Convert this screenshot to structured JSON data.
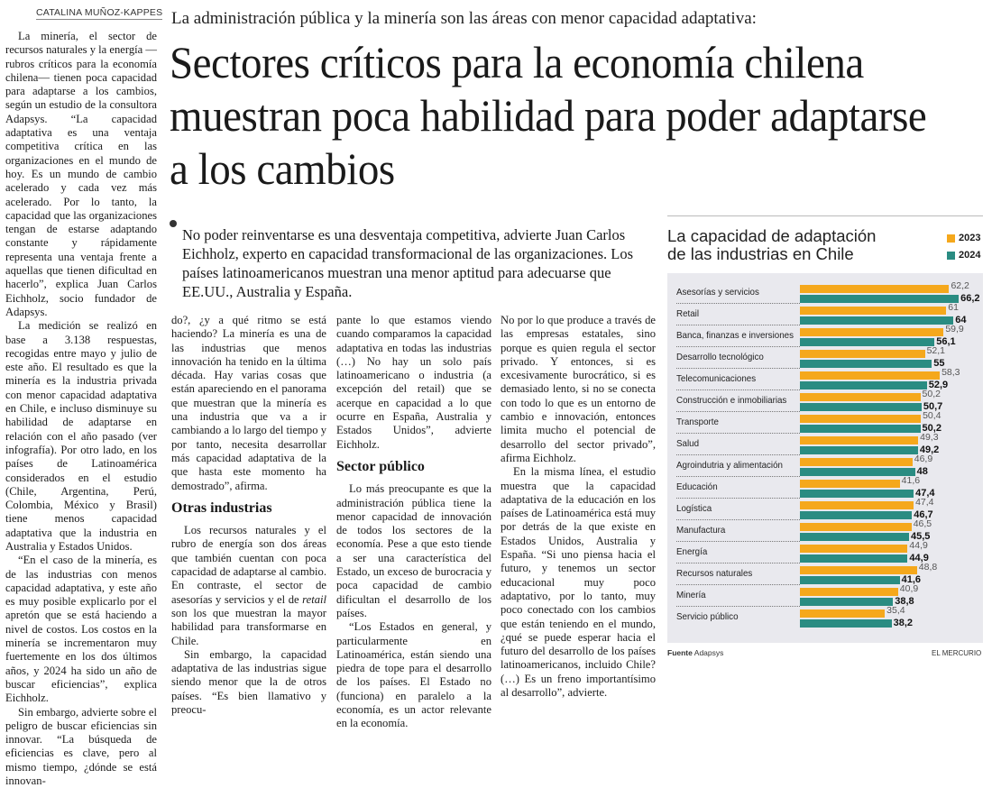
{
  "byline": "CATALINA MUÑOZ-KAPPES",
  "kicker": "La administración pública y la minería son las áreas con menor capacidad adaptativa:",
  "headline": "Sectores críticos para la economía chilena muestran poca habilidad para poder adaptarse a los cambios",
  "deck": "No poder reinventarse es una desventaja competitiva, advierte Juan Carlos Eichholz, experto en capacidad transformacional de las organizaciones. Los países latinoamericanos muestran una menor aptitud para adecuarse que EE.UU., Australia y España.",
  "col1": [
    "La minería, el sector de recursos naturales y la energía —rubros críticos para la economía chilena— tienen poca capacidad para adaptarse a los cambios, según un estudio de la consultora Adapsys. “La capacidad adaptativa es una ventaja competitiva crítica en las organizaciones en el mundo de hoy. Es un mundo de cambio acelerado y cada vez más acelerado. Por lo tanto, la capacidad que las organizaciones tengan de estarse adaptando constante y rápidamente representa una ventaja frente a aquellas que tienen dificultad en hacerlo”, explica Juan Carlos Eichholz, socio fundador de Adapsys.",
    "La medición se realizó en base a 3.138 respuestas, recogidas entre mayo y julio de este año. El resultado es que la minería es la industria privada con menor capacidad adaptativa en Chile, e incluso disminuye su habilidad de adaptarse en relación con el año pasado (ver infografía). Por otro lado, en los países de Latinoamérica considerados en el estudio (Chile, Argentina, Perú, Colombia, México y Brasil) tiene menos capacidad adaptativa que la industria en Australia y Estados Unidos.",
    "“En el caso de la minería, es de las industrias con menos capacidad adaptativa, y este año es muy posible explicarlo por el apretón que se está haciendo a nivel de costos. Los costos en la minería se incrementaron muy fuertemente en los dos últimos años, y 2024 ha sido un año de buscar eficiencias”, explica Eichholz.",
    "Sin embargo, advierte sobre el peligro de buscar eficiencias sin innovar. “La búsqueda de eficiencias es clave, pero al mismo tiempo, ¿dónde se está innovan-"
  ],
  "col2": {
    "p1": "do?, ¿y a qué ritmo se está haciendo? La minería es una de las industrias que menos innovación ha tenido en la última década. Hay varias cosas que están apareciendo en el panorama que muestran que la minería es una industria que va a ir cambiando a lo largo del tiempo y por tanto, necesita desarrollar más capacidad adaptativa de la que hasta este momento ha demostrado”, afirma.",
    "heading": "Otras industrias",
    "p2a": "Los recursos naturales y el rubro de energía son dos áreas que también cuentan con poca capacidad de adaptarse al cambio. En contraste, el sector de asesorías y servicios y el de ",
    "p2em": "retail",
    "p2b": " son los que muestran la mayor habilidad para transformarse en Chile.",
    "p3": "Sin embargo, la capacidad adaptativa de las industrias sigue siendo menor que la de otros países. “Es bien llamativo y preocu-"
  },
  "col3": {
    "p1": "pante lo que estamos viendo cuando comparamos la capacidad adaptativa en todas las industrias (…) No hay un solo país latinoamericano o industria (a excepción del retail) que se acerque en capacidad a lo que ocurre en España, Australia y Estados Unidos”, advierte Eichholz.",
    "heading": "Sector público",
    "p2": "Lo más preocupante es que la administración pública tiene la menor capacidad de innovación de todos los sectores de la economía. Pese a que esto tiende a ser una característica del Estado, un exceso de burocracia y poca capacidad de cambio dificultan el desarrollo de los países.",
    "p3": "“Los Estados en general, y particularmente en Latinoamérica, están siendo una piedra de tope para el desarrollo de los países. El Estado no (funciona) en paralelo a la economía, es un actor relevante en la economía."
  },
  "col4": [
    "No por lo que produce a través de las empresas estatales, sino porque es quien regula el sector privado. Y entonces, si es excesivamente burocrático, si es demasiado lento, si no se conecta con todo lo que es un entorno de cambio e innovación, entonces limita mucho el potencial de desarrollo del sector privado”, afirma Eichholz.",
    "En la misma línea, el estudio muestra que la capacidad adaptativa de la educación en los países de Latinoamérica está muy por detrás de la que existe en Estados Unidos, Australia y España. “Si uno piensa hacia el futuro, y tenemos un sector educacional muy poco adaptativo, por lo tanto, muy poco conectado con los cambios que están teniendo en el mundo, ¿qué se puede esperar hacia el futuro del desarrollo de los países latinoamericanos, incluido Chile? (…) Es un freno importantísimo al desarrollo”, advierte."
  ],
  "chart_data": {
    "type": "bar",
    "orientation": "horizontal",
    "title": "La capacidad de adaptación de las industrias en Chile",
    "categories": [
      "Asesorías y servicios",
      "Retail",
      "Banca, finanzas e inversiones",
      "Desarrollo tecnológico",
      "Telecomunicaciones",
      "Construcción e inmobiliarias",
      "Transporte",
      "Salud",
      "Agroindutria y alimentación",
      "Educación",
      "Logística",
      "Manufactura",
      "Energía",
      "Recursos naturales",
      "Minería",
      "Servicio público"
    ],
    "series": [
      {
        "name": "2023",
        "color": "#f5a81c",
        "values": [
          62.2,
          61,
          59.9,
          52.1,
          58.3,
          50.2,
          50.4,
          49.3,
          46.9,
          41.6,
          47.4,
          46.5,
          44.9,
          48.8,
          40.9,
          35.4
        ],
        "labels": [
          "62,2",
          "61",
          "59,9",
          "52,1",
          "58,3",
          "50,2",
          "50,4",
          "49,3",
          "46,9",
          "41,6",
          "47,4",
          "46,5",
          "44,9",
          "48,8",
          "40,9",
          "35,4"
        ]
      },
      {
        "name": "2024",
        "color": "#2a8c82",
        "values": [
          66.2,
          64,
          56.1,
          55,
          52.9,
          50.7,
          50.2,
          49.2,
          48,
          47.4,
          46.7,
          45.5,
          44.9,
          41.6,
          38.8,
          38.2
        ],
        "labels": [
          "66,2",
          "64",
          "56,1",
          "55",
          "52,9",
          "50,7",
          "50,2",
          "49,2",
          "48",
          "47,4",
          "46,7",
          "45,5",
          "44,9",
          "41,6",
          "38,8",
          "38,2"
        ]
      }
    ],
    "xlim": [
      0,
      70
    ],
    "grid": false,
    "legend": "top-right",
    "source_label": "Fuente",
    "source": "Adapsys"
  },
  "brand": "EL MERCURIO"
}
